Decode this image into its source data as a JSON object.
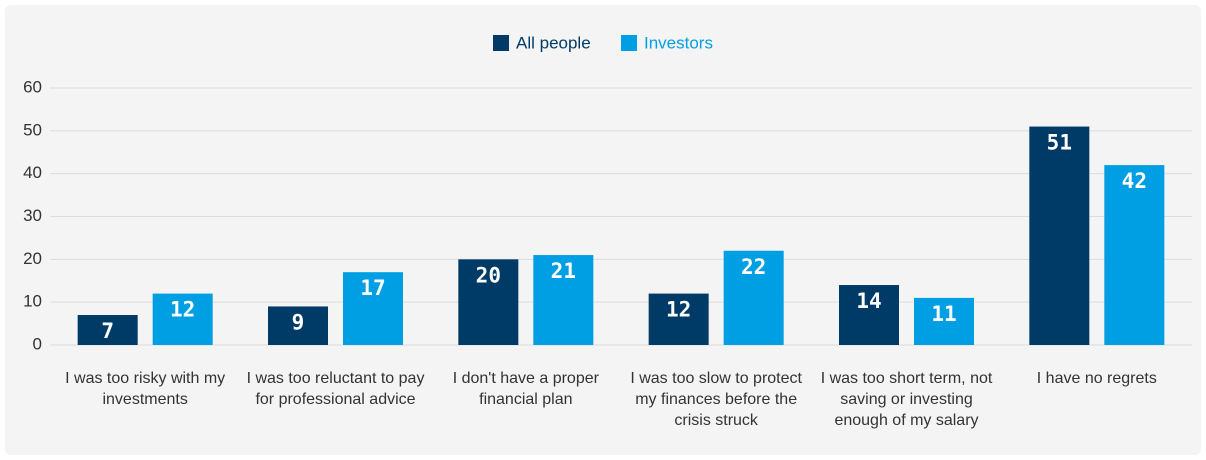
{
  "chart_data": {
    "type": "bar",
    "categories": [
      "I was too risky with my investments",
      "I was too reluctant to pay for professional advice",
      "I don't have a proper financial plan",
      "I was too slow to protect my finances before the crisis struck",
      "I was too short term, not saving or investing enough of my salary",
      "I have no regrets"
    ],
    "series": [
      {
        "name": "All people",
        "color": "#003a66",
        "values": [
          7,
          9,
          20,
          12,
          14,
          51
        ]
      },
      {
        "name": "Investors",
        "color": "#009fe3",
        "values": [
          12,
          17,
          21,
          22,
          11,
          42
        ]
      }
    ],
    "ylim": [
      0,
      60
    ],
    "yticks": [
      0,
      10,
      20,
      30,
      40,
      50,
      60
    ],
    "grid": true,
    "legend": "top"
  }
}
